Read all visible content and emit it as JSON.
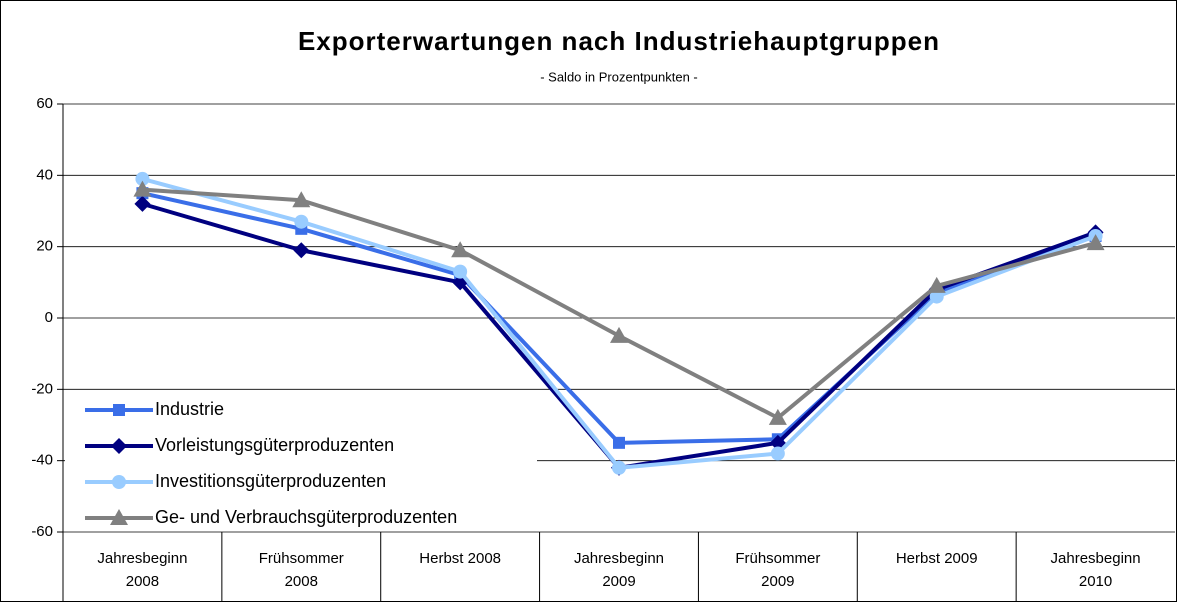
{
  "chart_data": {
    "type": "line",
    "title": "Exporterwartungen nach Industriehauptgruppen",
    "subtitle": "- Saldo in Prozentpunkten -",
    "categories": [
      [
        "Jahresbeginn",
        "2008"
      ],
      [
        "Frühsommer",
        "2008"
      ],
      [
        "Herbst 2008"
      ],
      [
        "Jahresbeginn",
        "2009"
      ],
      [
        "Frühsommer",
        "2009"
      ],
      [
        "Herbst 2009"
      ],
      [
        "Jahresbeginn",
        "2010"
      ]
    ],
    "series": [
      {
        "name": "Industrie",
        "color": "#3a6ee8",
        "marker": "square",
        "values": [
          35,
          25,
          12,
          -35,
          -34,
          7,
          23
        ]
      },
      {
        "name": "Vorleistungsgüterproduzenten",
        "color": "#000080",
        "marker": "diamond",
        "values": [
          32,
          19,
          10,
          -42,
          -35,
          8,
          24
        ]
      },
      {
        "name": "Investitionsgüterproduzenten",
        "color": "#99ccff",
        "marker": "circle",
        "values": [
          39,
          27,
          13,
          -42,
          -38,
          6,
          23
        ]
      },
      {
        "name": "Ge- und Verbrauchsgüterproduzenten",
        "color": "#808080",
        "marker": "triangle",
        "values": [
          36,
          33,
          19,
          -5,
          -28,
          9,
          21
        ]
      }
    ],
    "ylim": [
      -60,
      60
    ],
    "yticks": [
      -60,
      -40,
      -20,
      0,
      20,
      40,
      60
    ],
    "grid": true,
    "legend": "lower left"
  }
}
